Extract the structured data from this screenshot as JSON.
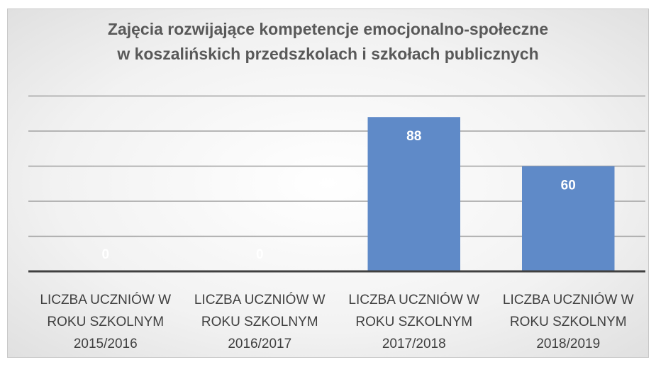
{
  "chart_data": {
    "type": "bar",
    "title": "Zajęcia rozwijające kompetencje emocjonalno-społeczne\nw koszalińskich przedszkolach i szkołach publicznych",
    "categories": [
      "LICZBA UCZNIÓW W ROKU SZKOLNYM 2015/2016",
      "LICZBA UCZNIÓW W ROKU SZKOLNYM 2016/2017",
      "LICZBA UCZNIÓW W ROKU SZKOLNYM 2017/2018",
      "LICZBA UCZNIÓW W ROKU SZKOLNYM 2018/2019"
    ],
    "values": [
      0,
      0,
      88,
      60
    ],
    "color": "#5f8ac8",
    "ylim": [
      0,
      100
    ],
    "yticks": [
      0,
      20,
      40,
      60,
      80,
      100
    ],
    "grid": true
  }
}
